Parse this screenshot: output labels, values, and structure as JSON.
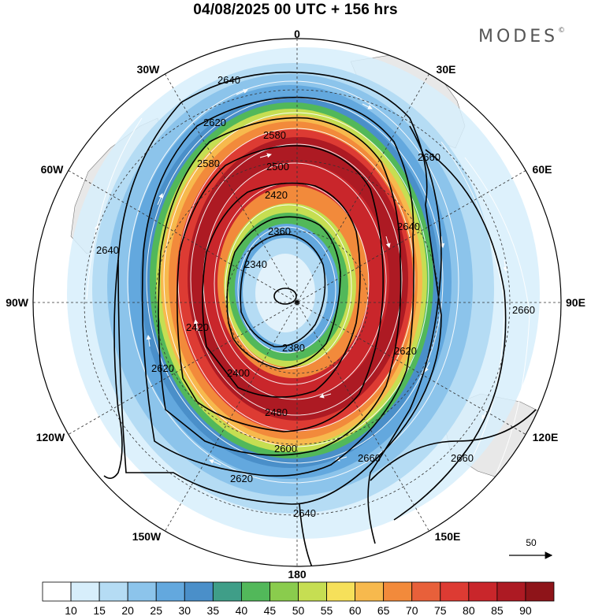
{
  "title": "04/08/2025  00 UTC  + 156 hrs",
  "brand": "MODES",
  "brand_mark": "©",
  "longitude_labels": {
    "top": "0",
    "bottom": "180",
    "left": "90W",
    "right": "90E",
    "w30": "30W",
    "e30": "30E",
    "w60": "60W",
    "e60": "60E",
    "w120": "120W",
    "e120": "120E",
    "w150": "150W",
    "e150": "150E"
  },
  "contour_labels": {
    "c2640a": "2640",
    "c2620a": "2620",
    "c2580a": "2580",
    "c2500": "2500",
    "c2420a": "2420",
    "c2360": "2360",
    "c2340": "2340",
    "c2380": "2380",
    "c2400": "2400",
    "c2480": "2480",
    "c2600": "2600",
    "c2620b": "2620",
    "c2640b": "2640",
    "c2660a": "2660",
    "c2660b": "2660",
    "c2660c": "2660",
    "c2640c": "2640",
    "c2640d": "2640",
    "c2620c": "2620",
    "c2580b": "2580",
    "c2420b": "2420",
    "c2620d": "2620",
    "c2660d": "2660"
  },
  "vector_reference": "50",
  "colorbar": {
    "ticks": [
      "10",
      "15",
      "20",
      "25",
      "30",
      "35",
      "40",
      "45",
      "50",
      "55",
      "60",
      "65",
      "70",
      "75",
      "80",
      "85",
      "90"
    ],
    "colors": [
      "#ffffff",
      "#d7eefb",
      "#b5dcf4",
      "#8cc4eb",
      "#63a8de",
      "#4a8fc9",
      "#3f9e88",
      "#52b85a",
      "#8acc4d",
      "#c6de52",
      "#f6e05a",
      "#f7b94d",
      "#f28a3b",
      "#e8603a",
      "#dd3b33",
      "#c9262b",
      "#ad1a23",
      "#8e1419"
    ]
  },
  "colors": {
    "land": "#e8e8e8",
    "ocean": "#ffffff",
    "contour": "#000000",
    "vector": "#ffffff"
  }
}
